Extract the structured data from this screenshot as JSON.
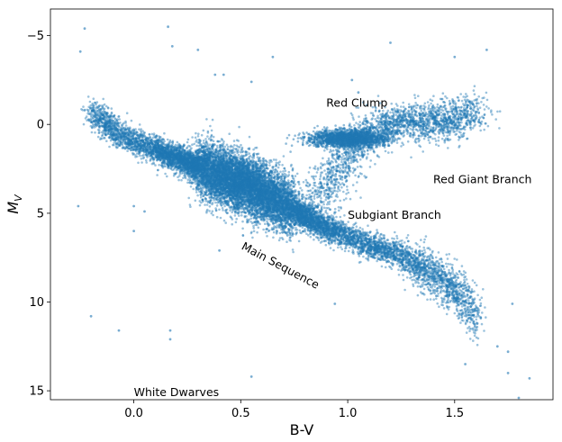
{
  "chart_data": {
    "type": "scatter",
    "title": "",
    "xlabel": "B-V",
    "ylabel_main": "M",
    "ylabel_sub": "V",
    "xlim": [
      -0.39,
      1.96
    ],
    "ylim": [
      15.5,
      -6.5
    ],
    "y_inverted": true,
    "x_ticks": [
      0.0,
      0.5,
      1.0,
      1.5
    ],
    "x_tick_labels": [
      "0.0",
      "0.5",
      "1.0",
      "1.5"
    ],
    "y_ticks": [
      -5,
      0,
      5,
      10,
      15
    ],
    "y_tick_labels": [
      "−5",
      "0",
      "5",
      "10",
      "15"
    ],
    "grid": false,
    "point_color": "#1f77b4",
    "series": [
      {
        "density_ridge_main_sequence": [
          [
            -0.2,
            -0.8
          ],
          [
            -0.1,
            0.3
          ],
          [
            0.0,
            1.0
          ],
          [
            0.1,
            1.4
          ],
          [
            0.2,
            1.9
          ],
          [
            0.3,
            2.4
          ],
          [
            0.4,
            2.9
          ],
          [
            0.5,
            3.3
          ],
          [
            0.6,
            3.8
          ],
          [
            0.7,
            4.4
          ],
          [
            0.8,
            5.2
          ],
          [
            0.9,
            5.8
          ],
          [
            1.0,
            6.3
          ],
          [
            1.1,
            6.8
          ],
          [
            1.2,
            7.1
          ],
          [
            1.3,
            7.8
          ],
          [
            1.4,
            8.4
          ],
          [
            1.5,
            9.2
          ],
          [
            1.55,
            10.1
          ],
          [
            1.6,
            11.0
          ]
        ],
        "density_ridge_red_giant_branch": [
          [
            0.85,
            4.5
          ],
          [
            0.9,
            3.5
          ],
          [
            0.95,
            2.5
          ],
          [
            1.0,
            1.8
          ],
          [
            1.05,
            1.0
          ],
          [
            1.15,
            0.2
          ],
          [
            1.3,
            -0.2
          ],
          [
            1.45,
            -0.1
          ],
          [
            1.6,
            -0.8
          ]
        ],
        "red_clump_center": [
          1.0,
          0.8
        ],
        "sparse_points": [
          [
            -0.23,
            -5.4
          ],
          [
            0.16,
            -5.5
          ],
          [
            -0.25,
            -4.1
          ],
          [
            0.18,
            -4.4
          ],
          [
            -0.26,
            4.6
          ],
          [
            -0.2,
            10.8
          ],
          [
            -0.07,
            11.6
          ],
          [
            0.17,
            11.6
          ],
          [
            0.17,
            12.1
          ],
          [
            0.3,
            -4.2
          ],
          [
            0.38,
            -2.8
          ],
          [
            0.42,
            -2.8
          ],
          [
            0.55,
            -2.4
          ],
          [
            0.65,
            -3.8
          ],
          [
            1.02,
            -2.5
          ],
          [
            1.05,
            -1.8
          ],
          [
            1.2,
            -4.6
          ],
          [
            1.5,
            -3.8
          ],
          [
            1.65,
            -4.2
          ],
          [
            0.0,
            4.6
          ],
          [
            0.0,
            6.0
          ],
          [
            0.05,
            4.9
          ],
          [
            0.4,
            7.1
          ],
          [
            0.55,
            14.2
          ],
          [
            0.94,
            10.1
          ],
          [
            1.55,
            13.5
          ],
          [
            1.7,
            12.5
          ],
          [
            1.75,
            12.8
          ],
          [
            1.77,
            10.1
          ],
          [
            1.8,
            15.4
          ],
          [
            1.85,
            14.3
          ],
          [
            1.75,
            14.0
          ]
        ]
      }
    ],
    "annotations": [
      {
        "text": "Red Clump",
        "x": 0.9,
        "y": -1.0,
        "rotation": 0
      },
      {
        "text": "Red Giant Branch",
        "x": 1.4,
        "y": 3.3,
        "rotation": 0
      },
      {
        "text": "Subgiant Branch",
        "x": 1.0,
        "y": 5.3,
        "rotation": 0
      },
      {
        "text": "Main Sequence",
        "x": 0.5,
        "y": 7.0,
        "rotation": 28
      },
      {
        "text": "White Dwarves",
        "x": 0.0,
        "y": 15.3,
        "rotation": 0
      }
    ]
  }
}
